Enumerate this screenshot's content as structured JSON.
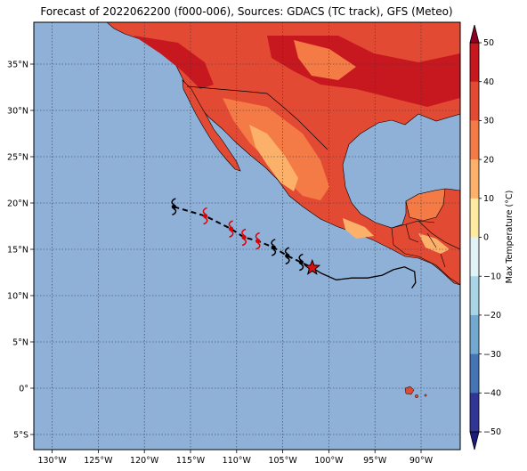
{
  "title": "Forecast of 2022062200 (f000-006), Sources: GDACS (TC track), GFS (Meteo)",
  "colorbar": {
    "label": "Max Temperature (°C)",
    "ticks": [
      "50",
      "40",
      "30",
      "20",
      "10",
      "0",
      "−10",
      "−20",
      "−30",
      "−40",
      "−50"
    ],
    "colors": [
      "#8c0026",
      "#c7181f",
      "#e34a33",
      "#f47b45",
      "#fcb16a",
      "#feeaa0",
      "#e1f3f7",
      "#a9d6e6",
      "#74a9cf",
      "#4575b4",
      "#313695",
      "#1c1c7a"
    ]
  },
  "map": {
    "ocean_color": "#8fb1d8",
    "lon_labels": [
      "130°W",
      "125°W",
      "120°W",
      "115°W",
      "110°W",
      "105°W",
      "100°W",
      "95°W",
      "90°W"
    ],
    "lat_labels": [
      "35°N",
      "30°N",
      "25°N",
      "20°N",
      "15°N",
      "10°N",
      "5°N",
      "0°",
      "5°S"
    ]
  },
  "track": {
    "points": [
      {
        "lon": -116.8,
        "lat": 19.6,
        "color": "#000000"
      },
      {
        "lon": -113.4,
        "lat": 18.6,
        "color": "#e00000"
      },
      {
        "lon": -110.6,
        "lat": 17.2,
        "color": "#e00000"
      },
      {
        "lon": -109.2,
        "lat": 16.3,
        "color": "#e00000"
      },
      {
        "lon": -107.7,
        "lat": 15.9,
        "color": "#e00000"
      },
      {
        "lon": -106.0,
        "lat": 15.2,
        "color": "#000000"
      },
      {
        "lon": -104.5,
        "lat": 14.3,
        "color": "#000000"
      },
      {
        "lon": -103.0,
        "lat": 13.6,
        "color": "#000000"
      }
    ],
    "current": {
      "lon": -101.8,
      "lat": 13.0,
      "color": "#e01010"
    },
    "past": [
      {
        "lon": -101.8,
        "lat": 13.0
      },
      {
        "lon": -100.8,
        "lat": 12.4
      },
      {
        "lon": -99.2,
        "lat": 11.7
      },
      {
        "lon": -97.5,
        "lat": 11.9
      },
      {
        "lon": -95.8,
        "lat": 11.9
      },
      {
        "lon": -94.2,
        "lat": 12.2
      },
      {
        "lon": -93.0,
        "lat": 12.8
      },
      {
        "lon": -91.8,
        "lat": 13.1
      },
      {
        "lon": -90.7,
        "lat": 12.6
      },
      {
        "lon": -90.6,
        "lat": 11.4
      },
      {
        "lon": -91.0,
        "lat": 10.8
      }
    ]
  }
}
